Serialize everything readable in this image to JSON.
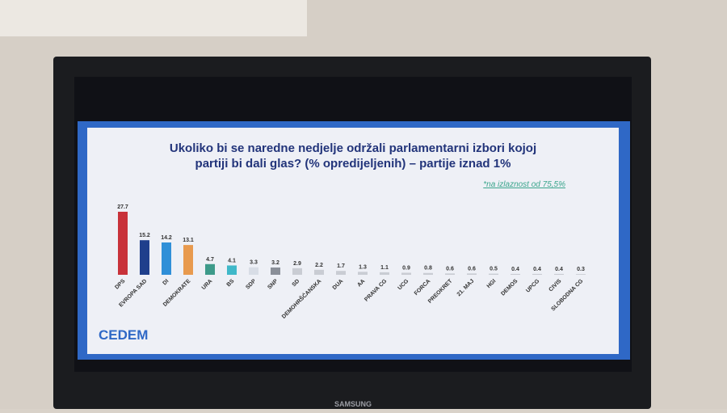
{
  "chart_data": {
    "type": "bar",
    "title_lines": [
      "Ukoliko bi se naredne nedjelje održali parlamentarni izbori kojoj",
      "partiji bi dali glas? (% opredijeljenih) – partije iznad 1%"
    ],
    "note": "*na izlaznost od 75,5%",
    "logo": "CEDEM",
    "tv_brand": "SAMSUNG",
    "categories": [
      "DPS",
      "EVROPA SAD",
      "DI",
      "DEMOKRATE",
      "URA",
      "BS",
      "SDP",
      "SNP",
      "SD",
      "DEMOHRŠĆANSKA",
      "DUA",
      "AA",
      "PRAVA CG",
      "UCG",
      "FORCA",
      "PREOKRET",
      "21. MAJ",
      "HGI",
      "DEMOS",
      "UPCG",
      "CIVIS",
      "SLOBODNA CG"
    ],
    "values": [
      27.7,
      15.2,
      14.2,
      13.1,
      4.7,
      4.1,
      3.3,
      3.2,
      2.9,
      2.2,
      1.7,
      1.3,
      1.1,
      0.9,
      0.8,
      0.6,
      0.6,
      0.5,
      0.4,
      0.4,
      0.4,
      0.3
    ],
    "colors": [
      "#c8323a",
      "#1f3f8c",
      "#2f8fd8",
      "#e89a4e",
      "#3d9a8a",
      "#3fb8c9",
      "#d8dde6",
      "#8a8f98",
      "#c9ccd3",
      "#c9ccd3",
      "#c9ccd3",
      "#c9ccd3",
      "#c9ccd3",
      "#c9ccd3",
      "#c9ccd3",
      "#c9ccd3",
      "#c9ccd3",
      "#c9ccd3",
      "#c9ccd3",
      "#c9ccd3",
      "#c9ccd3",
      "#c9ccd3"
    ]
  }
}
